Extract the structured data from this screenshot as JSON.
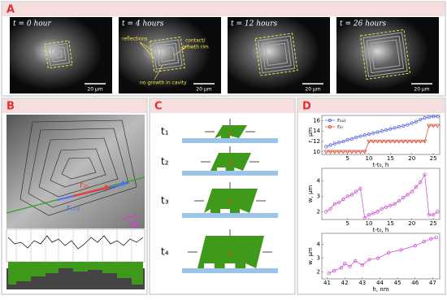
{
  "figure": {
    "panel_letters": [
      "A",
      "B",
      "C",
      "D"
    ],
    "panel_a": {
      "times": [
        "t = 0 hour",
        "t = 4 hours",
        "t = 12 hours",
        "t = 26 hours"
      ],
      "scale_bar": "20 µm",
      "annotations": {
        "reflections": "reflections",
        "rim": [
          "contact/",
          "growth rim"
        ],
        "cavity": "no growth in cavity"
      }
    },
    "panel_b": {
      "r_in": "rᵢₙ",
      "r_out": "rₒᵤₜ",
      "w": "w"
    },
    "panel_c": {
      "steps": [
        "t₁",
        "t₂",
        "t₃",
        "t₄"
      ]
    }
  },
  "chart_data": [
    {
      "type": "line",
      "ylabel": "r, µm",
      "xlabel": "t-t₀, h",
      "x": [
        0,
        1,
        2,
        3,
        4,
        5,
        6,
        7,
        8,
        9,
        10,
        11,
        12,
        13,
        14,
        15,
        16,
        17,
        18,
        19,
        20,
        21,
        22,
        23,
        24,
        25,
        26
      ],
      "xlim": [
        -1,
        26.5
      ],
      "xticks": [
        5,
        10,
        15,
        20,
        25
      ],
      "ylim": [
        9.5,
        17
      ],
      "yticks": [
        10,
        12,
        14,
        16
      ],
      "legend": "upper left",
      "series": [
        {
          "name": "rₒᵤₜ",
          "color": "#4a5bd8",
          "marker": "circle",
          "values": [
            11,
            11.3,
            11.6,
            11.8,
            12,
            12.3,
            12.5,
            12.8,
            13,
            13.2,
            13.4,
            13.6,
            13.8,
            14,
            14.2,
            14.4,
            14.6,
            14.8,
            15,
            15.2,
            15.5,
            15.8,
            16.2,
            16.5,
            16.7,
            16.8,
            16.8
          ]
        },
        {
          "name": "rᵢₙ",
          "color": "#d9402a",
          "marker": "triangle",
          "values": [
            10,
            10,
            10,
            10,
            10,
            10,
            10,
            10,
            10,
            10,
            12,
            12,
            12,
            12,
            12,
            12,
            12,
            12,
            12,
            12,
            12,
            12,
            12,
            12,
            15,
            15,
            15
          ]
        }
      ]
    },
    {
      "type": "line",
      "ylabel": "w, µm",
      "xlabel": "t-t₀, h",
      "x": [
        0,
        1,
        2,
        3,
        4,
        5,
        6,
        7,
        8,
        9,
        10,
        11,
        12,
        13,
        14,
        15,
        16,
        17,
        18,
        19,
        20,
        21,
        22,
        23,
        24,
        25,
        26
      ],
      "xlim": [
        -1,
        26.5
      ],
      "xticks": [
        5,
        10,
        15,
        20,
        25
      ],
      "ylim": [
        1.5,
        4.8
      ],
      "yticks": [
        2,
        3,
        4
      ],
      "series": [
        {
          "name": null,
          "color": "#cc44cc",
          "marker": "circle",
          "values": [
            2,
            2.2,
            2.5,
            2.6,
            2.8,
            3,
            3.1,
            3.3,
            3.5,
            1.6,
            1.8,
            1.9,
            2,
            2.2,
            2.3,
            2.4,
            2.5,
            2.7,
            2.9,
            3.1,
            3.3,
            3.6,
            3.9,
            4.4,
            1.8,
            1.8,
            2
          ]
        }
      ]
    },
    {
      "type": "line",
      "ylabel": "w, µm",
      "xlabel": "h, nm",
      "x": [
        41.1,
        41.4,
        41.8,
        42,
        42.3,
        42.6,
        43,
        43.4,
        43.9,
        44.5,
        45.2,
        46,
        46.5,
        46.9,
        47.2
      ],
      "xlim": [
        40.7,
        47.4
      ],
      "xticks": [
        41,
        42,
        43,
        44,
        45,
        46,
        47
      ],
      "ylim": [
        1.5,
        4.8
      ],
      "yticks": [
        2,
        3,
        4
      ],
      "series": [
        {
          "name": null,
          "color": "#cc44cc",
          "marker": "circle",
          "values": [
            1.9,
            2.1,
            2.3,
            2.6,
            2.4,
            2.8,
            2.5,
            2.9,
            3,
            3.4,
            3.6,
            3.9,
            4.2,
            4.4,
            4.5
          ]
        }
      ]
    }
  ]
}
